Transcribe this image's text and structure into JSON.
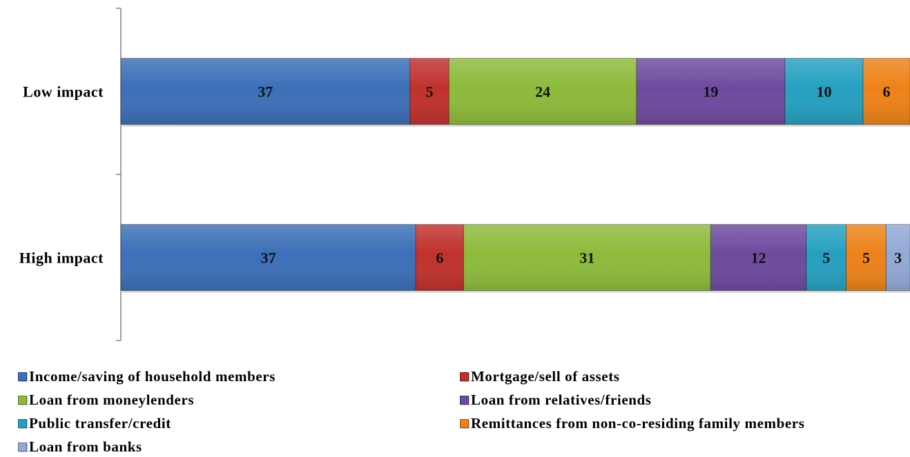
{
  "chart_data": {
    "type": "bar",
    "orientation": "horizontal",
    "stacked": true,
    "categories": [
      "Low impact",
      "High impact"
    ],
    "series": [
      {
        "name": "Income/saving of household members",
        "values": [
          37,
          37
        ],
        "color": "#3B6FB7"
      },
      {
        "name": "Mortgage/sell of assets",
        "values": [
          5,
          6
        ],
        "color": "#C0312D"
      },
      {
        "name": "Loan from moneylenders",
        "values": [
          24,
          31
        ],
        "color": "#8DBA3B"
      },
      {
        "name": "Loan from relatives/friends",
        "values": [
          19,
          12
        ],
        "color": "#6E4A9E"
      },
      {
        "name": "Public transfer/credit",
        "values": [
          10,
          5
        ],
        "color": "#25A0C0"
      },
      {
        "name": "Remittances from non-co-residing family members",
        "values": [
          6,
          5
        ],
        "color": "#EE8218"
      },
      {
        "name": "Loan from banks",
        "values": [
          null,
          3
        ],
        "color": "#92A9D6"
      }
    ],
    "data_labels": true,
    "legend_position": "bottom",
    "grid": false
  }
}
